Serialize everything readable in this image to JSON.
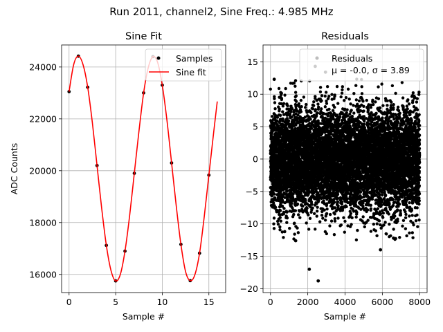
{
  "figure": {
    "title": "Run 2011, channel2, Sine Freq.: 4.985 MHz"
  },
  "chart_data": [
    {
      "type": "scatter",
      "title": "Sine Fit",
      "xlabel": "Sample #",
      "ylabel": "ADC Counts",
      "xlim": [
        -0.8,
        16.8
      ],
      "ylim": [
        15300,
        24850
      ],
      "xticks": [
        "0",
        "5",
        "10",
        "15"
      ],
      "yticks": [
        "16000",
        "18000",
        "20000",
        "22000",
        "24000"
      ],
      "grid": true,
      "legend": {
        "placement": "upper-right",
        "entries": [
          "Samples",
          "Sine fit"
        ]
      },
      "series": [
        {
          "name": "Samples",
          "kind": "points",
          "color": "#000000",
          "x": [
            0,
            1,
            2,
            3,
            4,
            5,
            6,
            7,
            8,
            9,
            10,
            11,
            12,
            13,
            14,
            15
          ],
          "y": [
            23050,
            24420,
            23220,
            20200,
            17120,
            15750,
            16900,
            19900,
            23000,
            24400,
            23300,
            20300,
            17160,
            15760,
            16820,
            19830
          ]
        },
        {
          "name": "Sine fit",
          "kind": "line",
          "color": "#ff0000",
          "x": [
            0,
            0.5,
            1,
            1.5,
            2,
            2.5,
            3,
            3.5,
            4,
            4.5,
            5,
            5.5,
            6,
            6.5,
            7,
            7.5,
            8,
            8.5,
            9,
            9.5,
            10,
            10.5,
            11,
            11.5,
            12,
            12.5,
            13,
            13.5,
            14,
            14.5,
            15,
            15.5,
            15.9
          ],
          "y": [
            23050,
            24100,
            24420,
            24090,
            23220,
            21850,
            20200,
            18550,
            17120,
            16150,
            15750,
            16000,
            16900,
            18270,
            19900,
            21530,
            23000,
            23980,
            24400,
            24180,
            23300,
            21950,
            20300,
            18640,
            17160,
            16110,
            15760,
            15990,
            16820,
            18220,
            19830,
            21430,
            22670
          ]
        }
      ]
    },
    {
      "type": "scatter",
      "title": "Residuals",
      "xlabel": "Sample #",
      "ylabel": "",
      "xlim": [
        -400,
        8400
      ],
      "ylim": [
        -20.6,
        17.6
      ],
      "xticks": [
        "0",
        "2000",
        "4000",
        "6000",
        "8000"
      ],
      "yticks": [
        "−20",
        "−15",
        "−10",
        "−5",
        "0",
        "5",
        "10",
        "15"
      ],
      "grid": true,
      "legend": {
        "placement": "upper-right",
        "entries": [
          "Residuals",
          "μ = -0.0, σ = 3.89"
        ]
      },
      "series": [
        {
          "name": "Residuals",
          "kind": "points",
          "color": "#000000",
          "n_points": 8000,
          "mean": -0.0,
          "std": 3.89,
          "outliers": [
            {
              "x": 2080,
              "y": -17.0
            },
            {
              "x": 2560,
              "y": -18.8
            },
            {
              "x": 5900,
              "y": -14.0
            },
            {
              "x": 1350,
              "y": -12.6
            },
            {
              "x": 2400,
              "y": 14.3
            },
            {
              "x": 2950,
              "y": 13.4
            },
            {
              "x": 200,
              "y": 12.3
            },
            {
              "x": 6600,
              "y": -12.2
            }
          ]
        }
      ]
    }
  ]
}
